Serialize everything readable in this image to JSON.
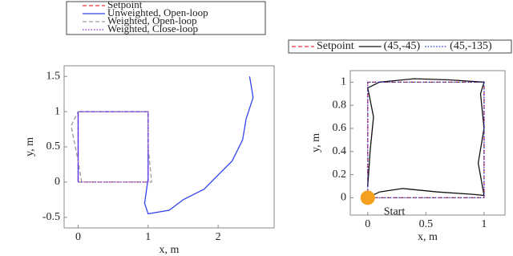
{
  "chart_data": [
    {
      "type": "line",
      "xlabel": "x, m",
      "ylabel": "y, m",
      "xlim": [
        -0.2,
        2.8
      ],
      "ylim": [
        -0.65,
        1.65
      ],
      "xticks": [
        0,
        1,
        2
      ],
      "yticks": [
        -0.5,
        0,
        0.5,
        1,
        1.5
      ],
      "legend": "top",
      "series": [
        {
          "name": "Setpoint",
          "color": "#e8353a",
          "linestyle": "dashed",
          "x": [
            0,
            1,
            1,
            0,
            0
          ],
          "values": [
            0,
            0,
            1,
            1,
            0
          ]
        },
        {
          "name": "Unweighted, Open-loop",
          "color": "#3344ee",
          "linestyle": "solid",
          "x": [
            0,
            0,
            1,
            1,
            0.95,
            1.0,
            1.3,
            1.5,
            1.8,
            2.0,
            2.2,
            2.35,
            2.4,
            2.5,
            2.45
          ],
          "values": [
            0,
            1,
            1,
            0.05,
            -0.3,
            -0.45,
            -0.4,
            -0.25,
            -0.1,
            0.1,
            0.3,
            0.6,
            0.9,
            1.2,
            1.5
          ]
        },
        {
          "name": "Weighted, Open-loop",
          "color": "#999999",
          "linestyle": "dashed",
          "x": [
            0.05,
            0,
            -0.1,
            0,
            1,
            1,
            1.05,
            0
          ],
          "values": [
            0,
            0.3,
            0.8,
            1,
            1,
            0.5,
            0,
            0
          ]
        },
        {
          "name": "Weighted, Close-loop",
          "color": "#8a2be2",
          "linestyle": "dotted",
          "x": [
            0,
            1,
            1,
            0,
            0
          ],
          "values": [
            0,
            0,
            1,
            1,
            0
          ]
        }
      ]
    },
    {
      "type": "line",
      "xlabel": "x, m",
      "ylabel": "y, m",
      "xlim": [
        -0.15,
        1.18
      ],
      "ylim": [
        -0.15,
        1.1
      ],
      "xticks": [
        0,
        0.5,
        1
      ],
      "yticks": [
        0,
        0.2,
        0.4,
        0.6,
        0.8,
        1
      ],
      "legend": "top",
      "annotation": "Start",
      "start_point": [
        0,
        0
      ],
      "series": [
        {
          "name": "Setpoint",
          "color": "#e8353a",
          "linestyle": "dashed",
          "x": [
            0,
            1,
            1,
            0,
            0
          ],
          "values": [
            0,
            0,
            1,
            1,
            0
          ]
        },
        {
          "name": "(45,-45)",
          "color": "#111111",
          "linestyle": "solid",
          "x": [
            0,
            0.1,
            0.3,
            0.6,
            0.9,
            1,
            0.95,
            1,
            0.97,
            1,
            0.7,
            0.4,
            0.1,
            0,
            0.05,
            0.02,
            0
          ],
          "values": [
            0,
            0.05,
            0.08,
            0.05,
            0.03,
            0.02,
            0.3,
            0.6,
            0.9,
            1,
            1.02,
            1.03,
            1,
            0.95,
            0.7,
            0.4,
            0.1
          ]
        },
        {
          "name": "(45,-135)",
          "color": "#2233dd",
          "linestyle": "dotted",
          "x": [
            0,
            1,
            1,
            0,
            0
          ],
          "values": [
            0,
            0,
            1,
            1,
            0
          ]
        }
      ]
    }
  ]
}
